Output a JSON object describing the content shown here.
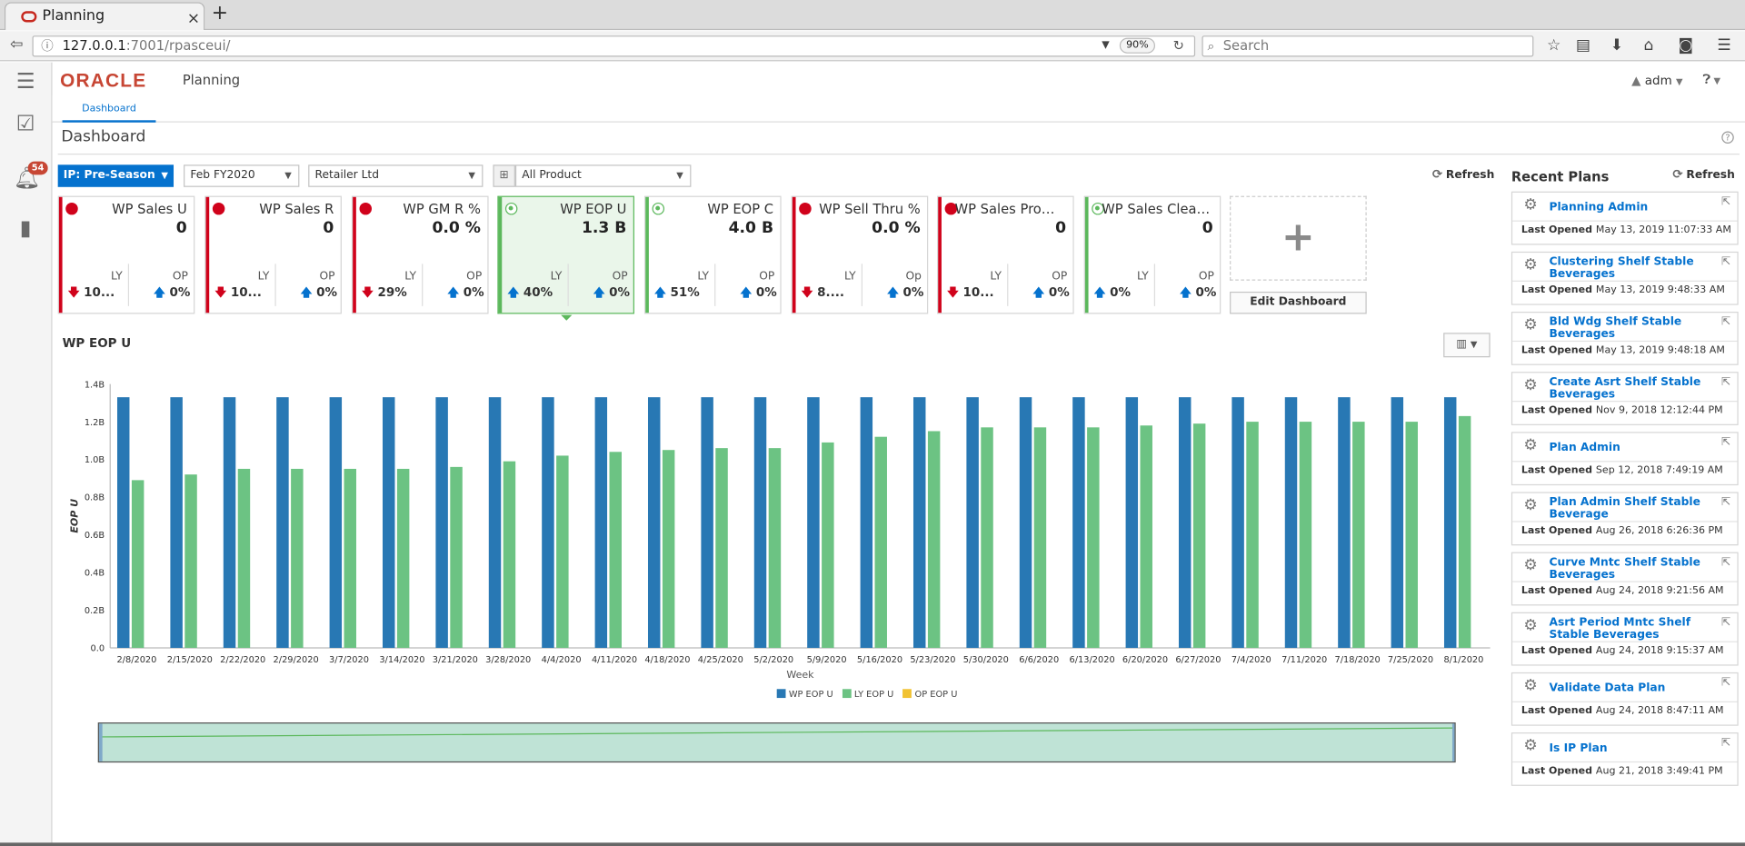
{
  "browser": {
    "tab_title": "Planning",
    "tab_close": "×",
    "new_tab": "+",
    "url_host": "127.0.0.1",
    "url_rest": ":7001/rpasceui/",
    "zoom": "90%",
    "search_placeholder": "Search"
  },
  "header": {
    "brand": "ORACLE",
    "app": "Planning",
    "user": "adm"
  },
  "rail": {
    "notification_count": "54"
  },
  "tabs": {
    "dashboard": "Dashboard"
  },
  "page": {
    "title": "Dashboard"
  },
  "filters": {
    "plan": "IP: Pre-Season",
    "period": "Feb FY2020",
    "location": "Retailer Ltd",
    "product": "All Product",
    "refresh": "Refresh"
  },
  "tiles": [
    {
      "name": "WP Sales U",
      "value": "0",
      "status": "alert",
      "ly_label": "LY",
      "ly": "10...",
      "ly_dir": "down",
      "op_label": "OP",
      "op": "0%",
      "op_dir": "up"
    },
    {
      "name": "WP Sales R",
      "value": "0",
      "status": "alert",
      "ly_label": "LY",
      "ly": "10...",
      "ly_dir": "down",
      "op_label": "OP",
      "op": "0%",
      "op_dir": "up"
    },
    {
      "name": "WP GM R %",
      "value": "0.0 %",
      "status": "alert",
      "ly_label": "LY",
      "ly": "29%",
      "ly_dir": "down",
      "op_label": "OP",
      "op": "0%",
      "op_dir": "up"
    },
    {
      "name": "WP EOP U",
      "value": "1.3 B",
      "status": "ok",
      "selected": true,
      "ly_label": "LY",
      "ly": "40%",
      "ly_dir": "up",
      "op_label": "OP",
      "op": "0%",
      "op_dir": "up"
    },
    {
      "name": "WP EOP C",
      "value": "4.0 B",
      "status": "ok",
      "ly_label": "LY",
      "ly": "51%",
      "ly_dir": "up",
      "op_label": "OP",
      "op": "0%",
      "op_dir": "up"
    },
    {
      "name": "WP Sell Thru %",
      "value": "0.0 %",
      "status": "alert",
      "ly_label": "LY",
      "ly": "8....",
      "ly_dir": "down",
      "op_label": "Op",
      "op": "0%",
      "op_dir": "up"
    },
    {
      "name": "WP Sales Prom...",
      "value": "0",
      "status": "alert",
      "ly_label": "LY",
      "ly": "10...",
      "ly_dir": "down",
      "op_label": "OP",
      "op": "0%",
      "op_dir": "up"
    },
    {
      "name": "WP Sales Clear U",
      "value": "0",
      "status": "ok",
      "ly_label": "LY",
      "ly": "0%",
      "ly_dir": "up",
      "op_label": "OP",
      "op": "0%",
      "op_dir": "up"
    }
  ],
  "edit_dashboard": "Edit Dashboard",
  "colors": {
    "alert": "#d0021b",
    "ok": "#5cb85c",
    "accent": "#0572ce",
    "series_wp": "#2878b4",
    "series_ly": "#6cc383",
    "series_op": "#f1c232"
  },
  "chart_data": {
    "type": "bar",
    "title": "WP EOP U",
    "xlabel": "Week",
    "ylabel": "EOP U",
    "ylim": [
      0,
      1.4
    ],
    "yticks": [
      "0.0",
      "0.2B",
      "0.4B",
      "0.6B",
      "0.8B",
      "1.0B",
      "1.2B",
      "1.4B"
    ],
    "categories": [
      "2/8/2020",
      "2/15/2020",
      "2/22/2020",
      "2/29/2020",
      "3/7/2020",
      "3/14/2020",
      "3/21/2020",
      "3/28/2020",
      "4/4/2020",
      "4/11/2020",
      "4/18/2020",
      "4/25/2020",
      "5/2/2020",
      "5/9/2020",
      "5/16/2020",
      "5/23/2020",
      "5/30/2020",
      "6/6/2020",
      "6/13/2020",
      "6/20/2020",
      "6/27/2020",
      "7/4/2020",
      "7/11/2020",
      "7/18/2020",
      "7/25/2020",
      "8/1/2020"
    ],
    "series": [
      {
        "name": "WP EOP U",
        "values": [
          1.33,
          1.33,
          1.33,
          1.33,
          1.33,
          1.33,
          1.33,
          1.33,
          1.33,
          1.33,
          1.33,
          1.33,
          1.33,
          1.33,
          1.33,
          1.33,
          1.33,
          1.33,
          1.33,
          1.33,
          1.33,
          1.33,
          1.33,
          1.33,
          1.33,
          1.33
        ]
      },
      {
        "name": "LY EOP U",
        "values": [
          0.89,
          0.92,
          0.95,
          0.95,
          0.95,
          0.95,
          0.96,
          0.99,
          1.02,
          1.04,
          1.05,
          1.06,
          1.06,
          1.09,
          1.12,
          1.15,
          1.17,
          1.17,
          1.17,
          1.18,
          1.19,
          1.2,
          1.2,
          1.2,
          1.2,
          1.23
        ]
      },
      {
        "name": "OP EOP U",
        "values": [
          0,
          0,
          0,
          0,
          0,
          0,
          0,
          0,
          0,
          0,
          0,
          0,
          0,
          0,
          0,
          0,
          0,
          0,
          0,
          0,
          0,
          0,
          0,
          0,
          0,
          0
        ]
      }
    ],
    "legend": "bottom",
    "grid": false
  },
  "recent_plans": {
    "title": "Recent Plans",
    "refresh": "Refresh",
    "last_opened_label": "Last Opened",
    "items": [
      {
        "name": "Planning Admin",
        "date": "May 13, 2019 11:07:33 AM"
      },
      {
        "name": "Clustering Shelf Stable Beverages",
        "date": "May 13, 2019 9:48:33 AM"
      },
      {
        "name": "Bld Wdg Shelf Stable Beverages",
        "date": "May 13, 2019 9:48:18 AM"
      },
      {
        "name": "Create Asrt Shelf Stable Beverages",
        "date": "Nov 9, 2018 12:12:44 PM"
      },
      {
        "name": "Plan Admin",
        "date": "Sep 12, 2018 7:49:19 AM"
      },
      {
        "name": "Plan Admin Shelf Stable Beverage",
        "date": "Aug 26, 2018 6:26:36 PM"
      },
      {
        "name": "Curve Mntc Shelf Stable Beverages",
        "date": "Aug 24, 2018 9:21:56 AM"
      },
      {
        "name": "Asrt Period Mntc Shelf Stable Beverages",
        "date": "Aug 24, 2018 9:15:37 AM"
      },
      {
        "name": "Validate Data Plan",
        "date": "Aug 24, 2018 8:47:11 AM"
      },
      {
        "name": "Is IP Plan",
        "date": "Aug 21, 2018 3:49:41 PM"
      }
    ]
  }
}
